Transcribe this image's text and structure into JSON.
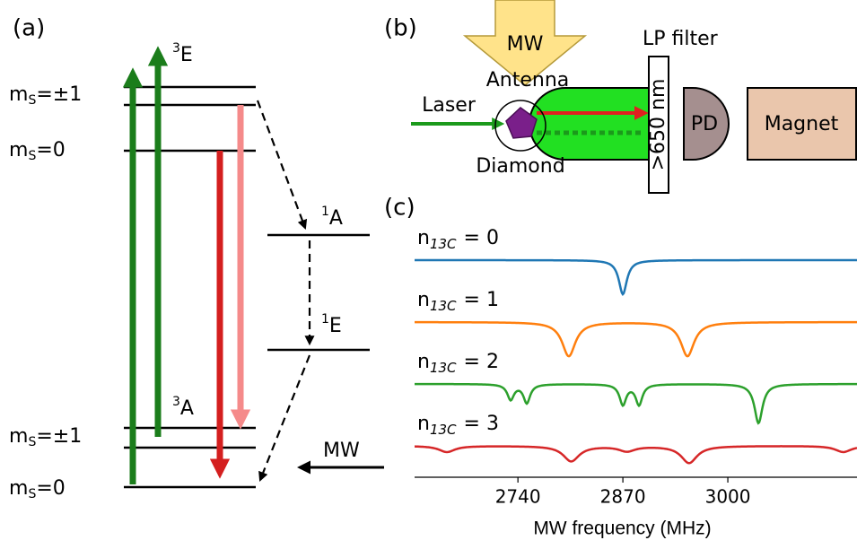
{
  "panel_a": {
    "label": "(a)",
    "excited": {
      "sup": "3",
      "text": "E",
      "levels": [
        {
          "text": "m",
          "sub": "S",
          "rest": "=±1"
        },
        {
          "text": "m",
          "sub": "S",
          "rest": "=0"
        }
      ]
    },
    "singlet_upper": {
      "sup": "1",
      "text": "A"
    },
    "singlet_lower": {
      "sup": "1",
      "text": "E"
    },
    "ground": {
      "sup": "3",
      "text": "A",
      "levels": [
        {
          "text": "m",
          "sub": "S",
          "rest": "=±1"
        },
        {
          "text": "m",
          "sub": "S",
          "rest": "=0"
        }
      ]
    },
    "mw": "MW"
  },
  "panel_b": {
    "label": "(b)",
    "mw": "MW",
    "antenna": "Antenna",
    "laser": "Laser",
    "diamond": "Diamond",
    "filter": "LP filter",
    "filter_value": ">650 nm",
    "detector": "PD",
    "magnet": "Magnet"
  },
  "chart_data": {
    "type": "dips",
    "panel_label": "(c)",
    "xlabel": "MW frequency (MHz)",
    "xlim": [
      2612,
      3160
    ],
    "xticks": [
      2740,
      2870,
      3000
    ],
    "symbol": "n",
    "subscript": "13C",
    "series": [
      {
        "name": "= 0",
        "color": "#1f77b4",
        "dips": [
          2870
        ],
        "depths": [
          1.0
        ],
        "widths": [
          6
        ]
      },
      {
        "name": "= 1",
        "color": "#ff7f0e",
        "dips": [
          2803,
          2950
        ],
        "depths": [
          1.0,
          1.0
        ],
        "widths": [
          10,
          10
        ]
      },
      {
        "name": "= 2",
        "color": "#2ca02c",
        "dips": [
          2731,
          2751,
          2870,
          2890,
          3038
        ],
        "depths": [
          0.45,
          0.55,
          0.6,
          0.6,
          1.15
        ],
        "widths": [
          5,
          5,
          5,
          5,
          6
        ]
      },
      {
        "name": "= 3",
        "color": "#d62728",
        "dips": [
          2652,
          2806,
          2875,
          2952,
          3143
        ],
        "depths": [
          0.18,
          0.45,
          0.15,
          0.5,
          0.18
        ],
        "widths": [
          12,
          12,
          12,
          12,
          12
        ]
      }
    ]
  }
}
